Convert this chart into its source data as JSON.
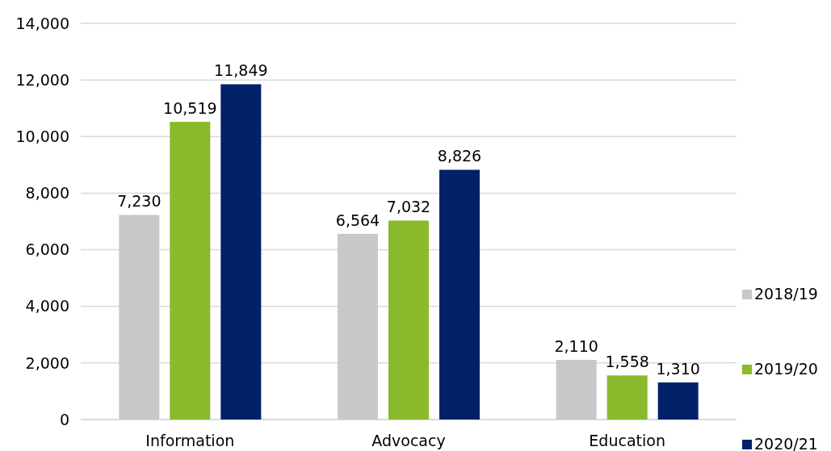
{
  "chart_data": {
    "type": "bar",
    "categories": [
      "Information",
      "Advocacy",
      "Education"
    ],
    "series": [
      {
        "name": "2018/19",
        "color": "#c8c8c8",
        "values": [
          7230,
          6564,
          2110
        ],
        "value_labels": [
          "7,230",
          "6,564",
          "2,110"
        ]
      },
      {
        "name": "2019/20",
        "color": "#8aba2b",
        "values": [
          10519,
          7032,
          1558
        ],
        "value_labels": [
          "10,519",
          "7,032",
          "1,558"
        ]
      },
      {
        "name": "2020/21",
        "color": "#012169",
        "values": [
          11849,
          8826,
          1310
        ],
        "value_labels": [
          "11,849",
          "8,826",
          "1,310"
        ]
      }
    ],
    "ylim": [
      0,
      14000
    ],
    "yticks": [
      {
        "value": 0,
        "label": "0"
      },
      {
        "value": 2000,
        "label": "2,000"
      },
      {
        "value": 4000,
        "label": "4,000"
      },
      {
        "value": 6000,
        "label": "6,000"
      },
      {
        "value": 8000,
        "label": "8,000"
      },
      {
        "value": 10000,
        "label": "10,000"
      },
      {
        "value": 12000,
        "label": "12,000"
      },
      {
        "value": 14000,
        "label": "14,000"
      }
    ],
    "grid": "y",
    "legend": "right"
  }
}
